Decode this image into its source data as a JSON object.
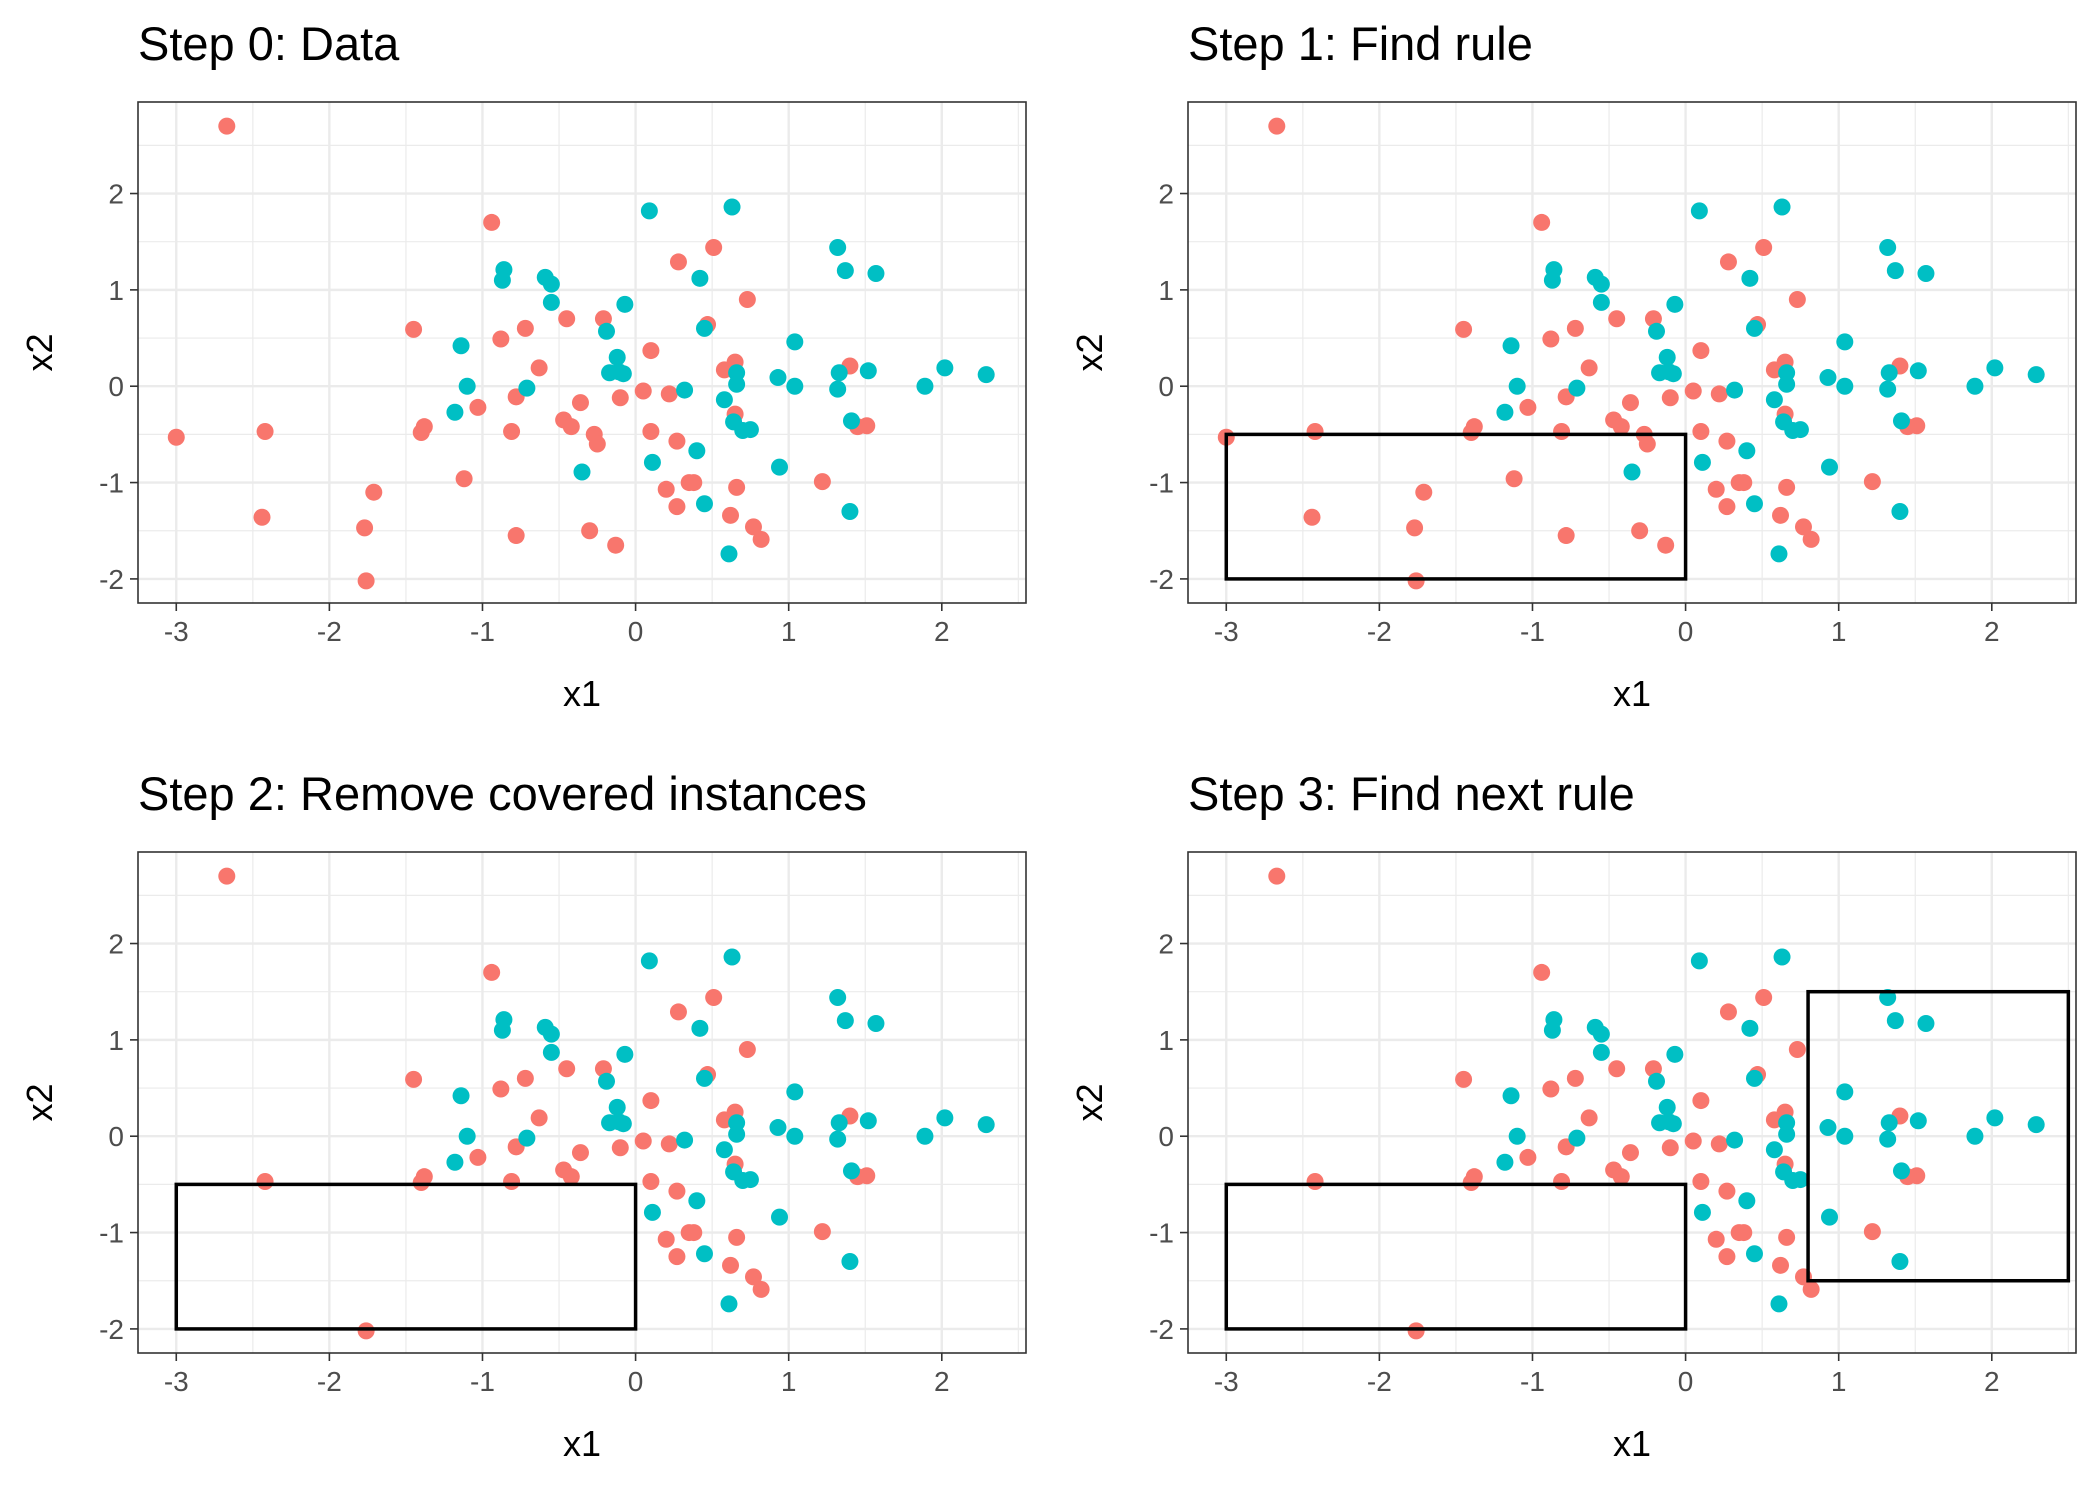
{
  "chart_data": [
    {
      "type": "scatter",
      "title": "Step 0: Data",
      "xlabel": "x1",
      "ylabel": "x2",
      "xlim": [
        -3.25,
        2.55
      ],
      "ylim": [
        -2.25,
        2.95
      ],
      "xticks": [
        -3,
        -2,
        -1,
        0,
        1,
        2
      ],
      "yticks": [
        -2,
        -1,
        0,
        1,
        2
      ],
      "grid": true,
      "rules": [],
      "points_ref": "points"
    },
    {
      "type": "scatter",
      "title": "Step 1: Find rule",
      "xlabel": "x1",
      "ylabel": "x2",
      "xlim": [
        -3.25,
        2.55
      ],
      "ylim": [
        -2.25,
        2.95
      ],
      "xticks": [
        -3,
        -2,
        -1,
        0,
        1,
        2
      ],
      "yticks": [
        -2,
        -1,
        0,
        1,
        2
      ],
      "grid": true,
      "rules": [
        {
          "x1_min": -3,
          "x1_max": 0,
          "x2_min": -2,
          "x2_max": -0.5
        }
      ],
      "points_ref": "points"
    },
    {
      "type": "scatter",
      "title": "Step 2: Remove covered instances",
      "xlabel": "x1",
      "ylabel": "x2",
      "xlim": [
        -3.25,
        2.55
      ],
      "ylim": [
        -2.25,
        2.95
      ],
      "xticks": [
        -3,
        -2,
        -1,
        0,
        1,
        2
      ],
      "yticks": [
        -2,
        -1,
        0,
        1,
        2
      ],
      "grid": true,
      "rules": [
        {
          "x1_min": -3,
          "x1_max": 0,
          "x2_min": -2,
          "x2_max": -0.5
        }
      ],
      "remove_covered_by_rule": 0,
      "points_ref": "points"
    },
    {
      "type": "scatter",
      "title": "Step 3: Find next rule",
      "xlabel": "x1",
      "ylabel": "x2",
      "xlim": [
        -3.25,
        2.55
      ],
      "ylim": [
        -2.25,
        2.95
      ],
      "xticks": [
        -3,
        -2,
        -1,
        0,
        1,
        2
      ],
      "yticks": [
        -2,
        -1,
        0,
        1,
        2
      ],
      "grid": true,
      "rules": [
        {
          "x1_min": -3,
          "x1_max": 0,
          "x2_min": -2,
          "x2_max": -0.5
        },
        {
          "x1_min": 0.8,
          "x1_max": 2.5,
          "x2_min": -1.5,
          "x2_max": 1.5
        }
      ],
      "remove_covered_by_rule": 0,
      "points_ref": "points"
    }
  ],
  "class_colors": {
    "a": "#F8766D",
    "b": "#00BFC4"
  },
  "rule_color": "#000000",
  "points": [
    {
      "x": -2.67,
      "y": 2.7,
      "c": "a"
    },
    {
      "x": -3.0,
      "y": -0.53,
      "c": "a"
    },
    {
      "x": -2.42,
      "y": -0.47,
      "c": "a"
    },
    {
      "x": -2.44,
      "y": -1.36,
      "c": "a"
    },
    {
      "x": -1.77,
      "y": -1.47,
      "c": "a"
    },
    {
      "x": -1.76,
      "y": -2.02,
      "c": "a"
    },
    {
      "x": -1.71,
      "y": -1.1,
      "c": "a"
    },
    {
      "x": -1.45,
      "y": 0.59,
      "c": "a"
    },
    {
      "x": -1.4,
      "y": -0.48,
      "c": "a"
    },
    {
      "x": -1.38,
      "y": -0.42,
      "c": "a"
    },
    {
      "x": -1.12,
      "y": -0.96,
      "c": "a"
    },
    {
      "x": -1.03,
      "y": -0.22,
      "c": "a"
    },
    {
      "x": -0.94,
      "y": 1.7,
      "c": "a"
    },
    {
      "x": -0.88,
      "y": 0.49,
      "c": "a"
    },
    {
      "x": -0.81,
      "y": -0.47,
      "c": "a"
    },
    {
      "x": -0.78,
      "y": -0.11,
      "c": "a"
    },
    {
      "x": -0.78,
      "y": -1.55,
      "c": "a"
    },
    {
      "x": -0.72,
      "y": 0.6,
      "c": "a"
    },
    {
      "x": -0.63,
      "y": 0.19,
      "c": "a"
    },
    {
      "x": -0.47,
      "y": -0.35,
      "c": "a"
    },
    {
      "x": -0.45,
      "y": 0.7,
      "c": "a"
    },
    {
      "x": -0.42,
      "y": -0.42,
      "c": "a"
    },
    {
      "x": -0.36,
      "y": -0.17,
      "c": "a"
    },
    {
      "x": -0.3,
      "y": -1.5,
      "c": "a"
    },
    {
      "x": -0.27,
      "y": -0.5,
      "c": "a"
    },
    {
      "x": -0.25,
      "y": -0.6,
      "c": "a"
    },
    {
      "x": -0.21,
      "y": 0.7,
      "c": "a"
    },
    {
      "x": -0.13,
      "y": -1.65,
      "c": "a"
    },
    {
      "x": -0.1,
      "y": -0.12,
      "c": "a"
    },
    {
      "x": 0.05,
      "y": -0.05,
      "c": "a"
    },
    {
      "x": 0.1,
      "y": 0.37,
      "c": "a"
    },
    {
      "x": 0.1,
      "y": -0.47,
      "c": "a"
    },
    {
      "x": 0.2,
      "y": -1.07,
      "c": "a"
    },
    {
      "x": 0.22,
      "y": -0.08,
      "c": "a"
    },
    {
      "x": 0.28,
      "y": 1.29,
      "c": "a"
    },
    {
      "x": 0.27,
      "y": -1.25,
      "c": "a"
    },
    {
      "x": 0.27,
      "y": -0.57,
      "c": "a"
    },
    {
      "x": 0.35,
      "y": -1.0,
      "c": "a"
    },
    {
      "x": 0.38,
      "y": -1.0,
      "c": "a"
    },
    {
      "x": 0.47,
      "y": 0.64,
      "c": "a"
    },
    {
      "x": 0.51,
      "y": 1.44,
      "c": "a"
    },
    {
      "x": 0.58,
      "y": 0.17,
      "c": "a"
    },
    {
      "x": 0.62,
      "y": -1.34,
      "c": "a"
    },
    {
      "x": 0.65,
      "y": 0.25,
      "c": "a"
    },
    {
      "x": 0.65,
      "y": -0.29,
      "c": "a"
    },
    {
      "x": 0.66,
      "y": -1.05,
      "c": "a"
    },
    {
      "x": 0.73,
      "y": 0.9,
      "c": "a"
    },
    {
      "x": 0.77,
      "y": -1.46,
      "c": "a"
    },
    {
      "x": 0.82,
      "y": -1.59,
      "c": "a"
    },
    {
      "x": 1.22,
      "y": -0.99,
      "c": "a"
    },
    {
      "x": 1.4,
      "y": 0.21,
      "c": "a"
    },
    {
      "x": 1.45,
      "y": -0.42,
      "c": "a"
    },
    {
      "x": 1.51,
      "y": -0.41,
      "c": "a"
    },
    {
      "x": -1.18,
      "y": -0.27,
      "c": "b"
    },
    {
      "x": -1.14,
      "y": 0.42,
      "c": "b"
    },
    {
      "x": -1.1,
      "y": 0.0,
      "c": "b"
    },
    {
      "x": -0.86,
      "y": 1.21,
      "c": "b"
    },
    {
      "x": -0.87,
      "y": 1.1,
      "c": "b"
    },
    {
      "x": -0.71,
      "y": -0.02,
      "c": "b"
    },
    {
      "x": -0.59,
      "y": 1.13,
      "c": "b"
    },
    {
      "x": -0.55,
      "y": 1.06,
      "c": "b"
    },
    {
      "x": -0.55,
      "y": 0.87,
      "c": "b"
    },
    {
      "x": -0.35,
      "y": -0.89,
      "c": "b"
    },
    {
      "x": -0.19,
      "y": 0.57,
      "c": "b"
    },
    {
      "x": -0.17,
      "y": 0.14,
      "c": "b"
    },
    {
      "x": -0.12,
      "y": 0.3,
      "c": "b"
    },
    {
      "x": -0.11,
      "y": 0.15,
      "c": "b"
    },
    {
      "x": -0.08,
      "y": 0.13,
      "c": "b"
    },
    {
      "x": -0.07,
      "y": 0.85,
      "c": "b"
    },
    {
      "x": 0.09,
      "y": 1.82,
      "c": "b"
    },
    {
      "x": 0.11,
      "y": -0.79,
      "c": "b"
    },
    {
      "x": 0.32,
      "y": -0.04,
      "c": "b"
    },
    {
      "x": 0.4,
      "y": -0.67,
      "c": "b"
    },
    {
      "x": 0.42,
      "y": 1.12,
      "c": "b"
    },
    {
      "x": 0.45,
      "y": 0.6,
      "c": "b"
    },
    {
      "x": 0.45,
      "y": -1.22,
      "c": "b"
    },
    {
      "x": 0.58,
      "y": -0.14,
      "c": "b"
    },
    {
      "x": 0.63,
      "y": 1.86,
      "c": "b"
    },
    {
      "x": 0.61,
      "y": -1.74,
      "c": "b"
    },
    {
      "x": 0.66,
      "y": 0.14,
      "c": "b"
    },
    {
      "x": 0.66,
      "y": 0.02,
      "c": "b"
    },
    {
      "x": 0.64,
      "y": -0.37,
      "c": "b"
    },
    {
      "x": 0.7,
      "y": -0.46,
      "c": "b"
    },
    {
      "x": 0.75,
      "y": -0.45,
      "c": "b"
    },
    {
      "x": 0.93,
      "y": 0.09,
      "c": "b"
    },
    {
      "x": 0.94,
      "y": -0.84,
      "c": "b"
    },
    {
      "x": 1.04,
      "y": 0.46,
      "c": "b"
    },
    {
      "x": 1.04,
      "y": 0.0,
      "c": "b"
    },
    {
      "x": 1.32,
      "y": 1.44,
      "c": "b"
    },
    {
      "x": 1.37,
      "y": 1.2,
      "c": "b"
    },
    {
      "x": 1.33,
      "y": 0.14,
      "c": "b"
    },
    {
      "x": 1.32,
      "y": -0.03,
      "c": "b"
    },
    {
      "x": 1.41,
      "y": -0.36,
      "c": "b"
    },
    {
      "x": 1.4,
      "y": -1.3,
      "c": "b"
    },
    {
      "x": 1.52,
      "y": 0.16,
      "c": "b"
    },
    {
      "x": 1.57,
      "y": 1.17,
      "c": "b"
    },
    {
      "x": 1.89,
      "y": 0.0,
      "c": "b"
    },
    {
      "x": 2.02,
      "y": 0.19,
      "c": "b"
    },
    {
      "x": 2.29,
      "y": 0.12,
      "c": "b"
    }
  ]
}
